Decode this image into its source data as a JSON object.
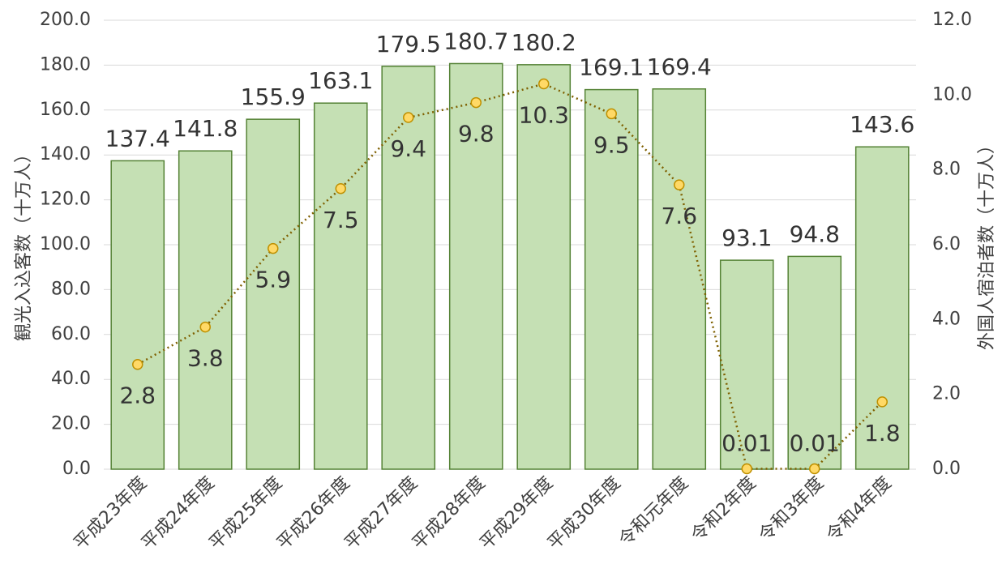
{
  "chart_data": {
    "type": "bar",
    "categories": [
      "平成23年度",
      "平成24年度",
      "平成25年度",
      "平成26年度",
      "平成27年度",
      "平成28年度",
      "平成29年度",
      "平成30年度",
      "令和元年度",
      "令和2年度",
      "令和3年度",
      "令和4年度"
    ],
    "series": [
      {
        "type": "bar",
        "color": "#c5e0b4",
        "edge": "#548235",
        "values": [
          137.4,
          141.8,
          155.9,
          163.1,
          179.5,
          180.7,
          180.2,
          169.1,
          169.4,
          93.1,
          94.8,
          143.6
        ]
      },
      {
        "type": "line",
        "axis": "y2",
        "color": "#7f6000",
        "marker": "#ffd966",
        "edge": "#bf9000",
        "values": [
          2.8,
          3.8,
          5.9,
          7.5,
          9.4,
          9.8,
          10.3,
          9.5,
          7.6,
          0.01,
          0.01,
          1.8
        ]
      }
    ],
    "ylabel": "観光入込客数（十万人）",
    "y2label": "外国人宿泊者数（十万人）",
    "ylim": [
      0,
      200
    ],
    "yticks": [
      {
        "value": 0,
        "label": "0.0"
      },
      {
        "value": 20,
        "label": "20.0"
      },
      {
        "value": 40,
        "label": "40.0"
      },
      {
        "value": 60,
        "label": "60.0"
      },
      {
        "value": 80,
        "label": "80.0"
      },
      {
        "value": 100,
        "label": "100.0"
      },
      {
        "value": 120,
        "label": "120.0"
      },
      {
        "value": 140,
        "label": "140.0"
      },
      {
        "value": 160,
        "label": "160.0"
      },
      {
        "value": 180,
        "label": "180.0"
      },
      {
        "value": 200,
        "label": "200.0"
      }
    ],
    "y2lim": [
      0,
      12
    ],
    "y2ticks": [
      {
        "value": 0,
        "label": "0.0"
      },
      {
        "value": 2,
        "label": "2.0"
      },
      {
        "value": 4,
        "label": "4.0"
      },
      {
        "value": 6,
        "label": "6.0"
      },
      {
        "value": 8,
        "label": "8.0"
      },
      {
        "value": 10,
        "label": "10.0"
      },
      {
        "value": 12,
        "label": "12.0"
      }
    ],
    "grid": true
  }
}
